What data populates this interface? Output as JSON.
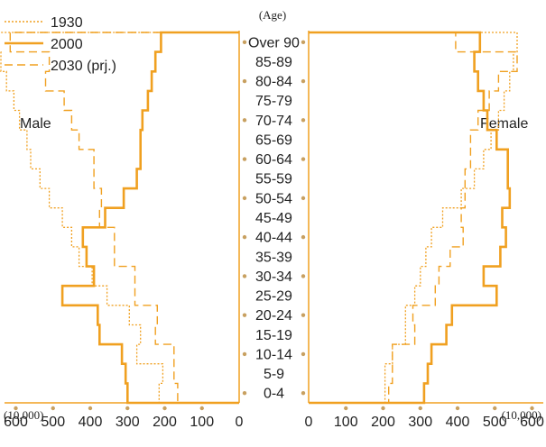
{
  "chart_data": {
    "type": "population-pyramid",
    "title": "",
    "age_axis_label": "(Age)",
    "male_label": "Male",
    "female_label": "Female",
    "unit_label": "(10,000)",
    "age_groups": [
      "0-4",
      "5-9",
      "10-14",
      "15-19",
      "20-24",
      "25-29",
      "30-34",
      "35-39",
      "40-44",
      "45-49",
      "50-54",
      "55-59",
      "60-64",
      "65-69",
      "70-74",
      "75-79",
      "80-84",
      "85-89",
      "Over 90"
    ],
    "age_tick_labels": [
      "Over 90",
      "85-89",
      "80-84",
      "75-79",
      "70-74",
      "65-69",
      "60-64",
      "55-59",
      "50-54",
      "45-49",
      "40-44",
      "35-39",
      "30-34",
      "25-29",
      "20-24",
      "15-19",
      "10-14",
      "5-9",
      "0-4"
    ],
    "x_ticks": [
      0,
      100,
      200,
      300,
      400,
      500,
      600
    ],
    "x_tick_labels": [
      "0",
      "100",
      "200",
      "300",
      "400",
      "500",
      "600"
    ],
    "xlim": [
      0,
      620
    ],
    "colors": {
      "line": "#f0a020",
      "dot": "#c8a060",
      "axis": "#f0a020"
    },
    "series": [
      {
        "name": "1930",
        "style": "dotted",
        "male": [
          215,
          205,
          275,
          265,
          295,
          355,
          395,
          430,
          450,
          475,
          510,
          535,
          560,
          570,
          590,
          605,
          625,
          640,
          655
        ],
        "female": [
          205,
          205,
          225,
          260,
          260,
          285,
          300,
          315,
          330,
          360,
          410,
          445,
          470,
          490,
          510,
          525,
          540,
          550,
          560
        ]
      },
      {
        "name": "2000",
        "style": "solid",
        "male": [
          300,
          305,
          315,
          375,
          380,
          475,
          390,
          410,
          420,
          360,
          310,
          275,
          265,
          265,
          260,
          245,
          235,
          225,
          210
        ],
        "female": [
          310,
          320,
          330,
          370,
          385,
          505,
          470,
          515,
          530,
          520,
          540,
          535,
          535,
          505,
          480,
          470,
          455,
          445,
          460
        ]
      },
      {
        "name": "2030 (prj.)",
        "style": "dashed",
        "male": [
          165,
          175,
          175,
          225,
          220,
          280,
          280,
          335,
          335,
          375,
          370,
          390,
          390,
          430,
          450,
          470,
          520,
          510,
          615
        ],
        "female": [
          215,
          225,
          225,
          285,
          280,
          340,
          350,
          380,
          415,
          410,
          420,
          420,
          435,
          435,
          455,
          485,
          510,
          560,
          395
        ]
      }
    ]
  }
}
